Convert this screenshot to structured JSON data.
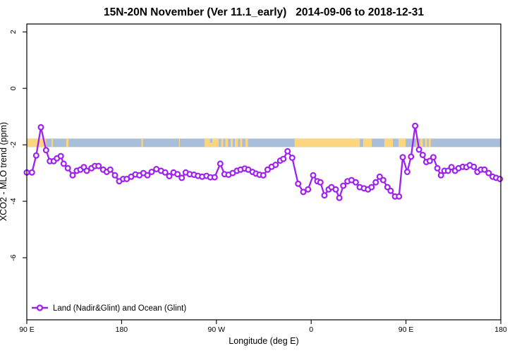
{
  "chart_data": {
    "type": "line",
    "title": "15N-20N November (Ver 11.1_early)   2014-09-06 to 2018-12-31",
    "xlabel": "Longitude (deg E)",
    "ylabel": "XCO2 - MLO trend (ppm)",
    "xlim": [
      90,
      540
    ],
    "ylim": [
      -8.2,
      2.28
    ],
    "grid": false,
    "x_ticks": [
      {
        "value": 90,
        "label": "90 E"
      },
      {
        "value": 180,
        "label": "180"
      },
      {
        "value": 270,
        "label": "90 W"
      },
      {
        "value": 360,
        "label": "0"
      },
      {
        "value": 450,
        "label": "90 E"
      },
      {
        "value": 540,
        "label": "180"
      }
    ],
    "y_ticks": [
      {
        "value": 2,
        "label": "2"
      },
      {
        "value": 0,
        "label": "0"
      },
      {
        "value": -2,
        "label": "-2"
      },
      {
        "value": -4,
        "label": "-4"
      },
      {
        "value": -6,
        "label": "-6"
      }
    ],
    "legend": {
      "position": "bottom-left",
      "entries": [
        {
          "label": "Land (Nadir&Glint) and Ocean (Glint)",
          "color": "#A020F0",
          "marker": "open-circle"
        }
      ]
    },
    "surface_band": {
      "ppm_top": -1.78,
      "ppm_bottom": -2.08,
      "ocean_color": "#A9BFD9",
      "land_color": "#FBD67E",
      "land_segments_deg_e": [
        [
          90,
          108.2
        ],
        [
          113.4,
          114.9
        ],
        [
          127.4,
          129.6
        ],
        [
          198.8,
          200.3
        ],
        [
          234.5,
          235.3
        ],
        [
          258.8,
          263.8
        ],
        [
          263.8,
          266.2,
          "bottom"
        ],
        [
          266.2,
          272.2
        ],
        [
          274.5,
          276.5
        ],
        [
          278.5,
          281.0
        ],
        [
          283.5,
          285.5
        ],
        [
          287.5,
          290.5
        ],
        [
          292.5,
          294.5
        ],
        [
          297.5,
          300.0
        ],
        [
          344.3,
          406.2
        ],
        [
          409.3,
          417.5
        ],
        [
          429.4,
          437.6
        ],
        [
          442.9,
          449.7
        ],
        [
          459.5,
          461.5
        ],
        [
          463.5,
          466.0
        ],
        [
          468.0,
          470.0
        ],
        [
          471.5,
          473.5
        ]
      ]
    },
    "series": [
      {
        "name": "Land (Nadir&Glint) and Ocean (Glint)",
        "color": "#A020F0",
        "marker": "open-circle",
        "x": [
          90,
          94.9,
          98.9,
          103.4,
          108.3,
          111.9,
          115.6,
          118.6,
          122.3,
          125.0,
          129.0,
          133.5,
          137.5,
          140.9,
          144.2,
          146.9,
          151.4,
          154.7,
          158.1,
          162.5,
          165.9,
          169.2,
          173.7,
          177.7,
          181.5,
          184.9,
          189.1,
          193.1,
          196.9,
          200.7,
          204.5,
          208.5,
          213.0,
          217.4,
          221.4,
          225.3,
          229.3,
          233.1,
          237.1,
          240.9,
          244.7,
          248.7,
          252.5,
          256.5,
          260.6,
          264.3,
          268.3,
          273.7,
          277.7,
          281.5,
          285.5,
          289.5,
          292.9,
          296.9,
          300.3,
          304.3,
          307.6,
          311.0,
          314.5,
          318.6,
          322.4,
          326.2,
          330.6,
          333.6,
          337.6,
          342.0,
          347.6,
          352.5,
          357.0,
          361.9,
          365.9,
          368.8,
          372.6,
          376.6,
          379.3,
          383.3,
          386.7,
          390.5,
          394.5,
          398.3,
          402.3,
          406.1,
          410.1,
          413.9,
          417.3,
          421.3,
          425.0,
          428.4,
          432.4,
          435.5,
          439.6,
          443.4,
          446.9,
          451.2,
          454.8,
          458.7,
          462.4,
          465.9,
          469.3,
          472.6,
          476.0,
          479.8,
          483.2,
          486.5,
          489.9,
          493.2,
          496.6,
          499.9,
          503.9,
          507.3,
          510.6,
          514.4,
          517.8,
          521.1,
          524.5,
          528.5,
          532.3,
          535.6,
          539.1
        ],
        "y": [
          -2.98,
          -2.98,
          -2.38,
          -1.38,
          -2.19,
          -2.58,
          -2.58,
          -2.48,
          -2.4,
          -2.67,
          -2.83,
          -3.08,
          -2.92,
          -2.88,
          -2.79,
          -2.92,
          -2.83,
          -2.75,
          -2.75,
          -2.88,
          -2.96,
          -2.88,
          -3.08,
          -3.29,
          -3.21,
          -3.21,
          -3.13,
          -3.05,
          -3.08,
          -3.0,
          -3.08,
          -2.96,
          -2.86,
          -2.92,
          -2.98,
          -3.11,
          -2.98,
          -3.04,
          -3.17,
          -2.98,
          -3.04,
          -3.06,
          -3.1,
          -3.13,
          -3.1,
          -3.15,
          -3.15,
          -2.67,
          -3.04,
          -3.06,
          -3.0,
          -2.92,
          -2.88,
          -2.84,
          -2.88,
          -2.96,
          -3.02,
          -3.06,
          -3.08,
          -2.88,
          -2.78,
          -2.71,
          -2.56,
          -2.5,
          -2.23,
          -2.46,
          -3.38,
          -3.67,
          -3.58,
          -3.08,
          -3.29,
          -3.33,
          -3.79,
          -3.58,
          -3.5,
          -3.58,
          -3.88,
          -3.45,
          -3.29,
          -3.25,
          -3.33,
          -3.5,
          -3.54,
          -3.58,
          -3.5,
          -3.33,
          -3.13,
          -3.25,
          -3.5,
          -3.63,
          -3.83,
          -3.83,
          -2.44,
          -2.96,
          -2.42,
          -1.33,
          -2.17,
          -2.36,
          -2.61,
          -2.57,
          -2.44,
          -2.83,
          -3.08,
          -2.92,
          -2.92,
          -2.79,
          -2.92,
          -2.83,
          -2.78,
          -2.79,
          -2.72,
          -2.78,
          -2.96,
          -2.88,
          -2.88,
          -3.0,
          -3.13,
          -3.17,
          -3.21
        ]
      }
    ]
  }
}
